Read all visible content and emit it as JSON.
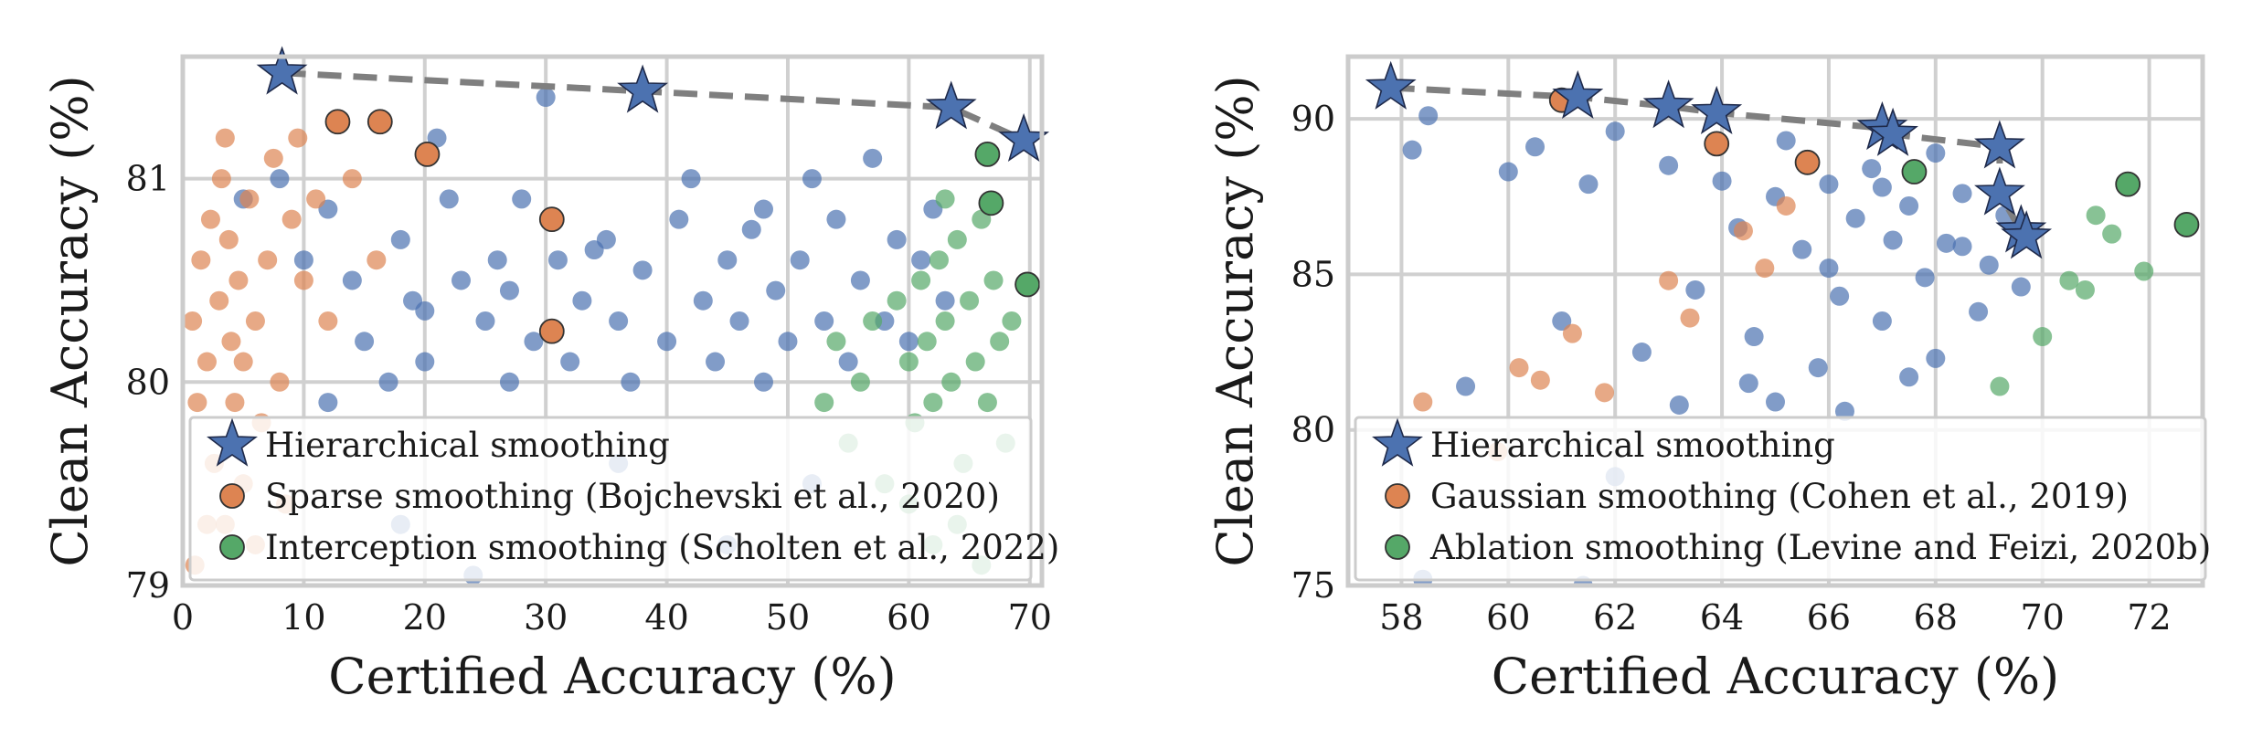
{
  "chart_data": [
    {
      "type": "scatter",
      "title": "",
      "xlabel": "Certified Accuracy (%)",
      "ylabel": "Clean Accuracy (%)",
      "xlim": [
        0,
        71
      ],
      "ylim": [
        79,
        81.6
      ],
      "xticks": [
        0,
        10,
        20,
        30,
        40,
        50,
        60,
        70
      ],
      "yticks": [
        79,
        80,
        81
      ],
      "grid": true,
      "legend_position": "bottom-left",
      "series": [
        {
          "name": "Hierarchical smoothing",
          "marker": "star",
          "color": "#4c72b0",
          "points": [
            [
              8.2,
              81.52
            ],
            [
              38.0,
              81.43
            ],
            [
              63.5,
              81.35
            ],
            [
              69.5,
              81.19
            ]
          ]
        },
        {
          "name": "Sparse smoothing (Bojchevski et al., 2020)",
          "marker": "circle-outlined",
          "color": "#dd8452",
          "points": [
            [
              12.8,
              81.28
            ],
            [
              16.3,
              81.28
            ],
            [
              20.2,
              81.12
            ],
            [
              30.5,
              80.8
            ],
            [
              30.5,
              80.25
            ]
          ]
        },
        {
          "name": "Interception smoothing (Scholten et al., 2022)",
          "marker": "circle-outlined",
          "color": "#55a868",
          "points": [
            [
              66.5,
              81.12
            ],
            [
              66.8,
              80.88
            ],
            [
              69.8,
              80.48
            ]
          ]
        },
        {
          "name": "",
          "role": "background cloud",
          "marker": "circle",
          "color": "#4c72b0",
          "points": [
            [
              5,
              80.9
            ],
            [
              8,
              81.0
            ],
            [
              10,
              80.6
            ],
            [
              12,
              80.85
            ],
            [
              14,
              80.5
            ],
            [
              15,
              80.2
            ],
            [
              17,
              80.0
            ],
            [
              18,
              80.7
            ],
            [
              19,
              80.4
            ],
            [
              20,
              80.1
            ],
            [
              21,
              81.2
            ],
            [
              22,
              80.9
            ],
            [
              23,
              80.5
            ],
            [
              25,
              80.3
            ],
            [
              26,
              80.6
            ],
            [
              27,
              80.0
            ],
            [
              28,
              80.9
            ],
            [
              29,
              80.2
            ],
            [
              30,
              81.4
            ],
            [
              31,
              80.6
            ],
            [
              32,
              80.1
            ],
            [
              33,
              80.4
            ],
            [
              35,
              80.7
            ],
            [
              36,
              80.3
            ],
            [
              37,
              80.0
            ],
            [
              38,
              80.55
            ],
            [
              40,
              80.2
            ],
            [
              41,
              80.8
            ],
            [
              42,
              81.0
            ],
            [
              43,
              80.4
            ],
            [
              44,
              80.1
            ],
            [
              45,
              80.6
            ],
            [
              46,
              80.3
            ],
            [
              47,
              80.75
            ],
            [
              48,
              80.0
            ],
            [
              49,
              80.45
            ],
            [
              50,
              80.2
            ],
            [
              51,
              80.6
            ],
            [
              52,
              81.0
            ],
            [
              53,
              80.3
            ],
            [
              54,
              80.8
            ],
            [
              55,
              80.1
            ],
            [
              56,
              80.5
            ],
            [
              57,
              81.1
            ],
            [
              58,
              80.3
            ],
            [
              59,
              80.7
            ],
            [
              60,
              80.2
            ],
            [
              61,
              80.6
            ],
            [
              62,
              80.85
            ],
            [
              63,
              80.4
            ],
            [
              12,
              79.9
            ],
            [
              18,
              79.3
            ],
            [
              24,
              79.05
            ],
            [
              36,
              79.6
            ],
            [
              45,
              79.2
            ],
            [
              52,
              79.5
            ],
            [
              20,
              80.35
            ],
            [
              27,
              80.45
            ],
            [
              34,
              80.65
            ],
            [
              48,
              80.85
            ]
          ]
        },
        {
          "name": "",
          "role": "background cloud",
          "marker": "circle",
          "color": "#dd8452",
          "points": [
            [
              0.8,
              80.3
            ],
            [
              1.2,
              79.9
            ],
            [
              1.5,
              80.6
            ],
            [
              2,
              80.1
            ],
            [
              2.3,
              80.8
            ],
            [
              2.6,
              79.6
            ],
            [
              3,
              80.4
            ],
            [
              3.2,
              81.0
            ],
            [
              3.5,
              79.3
            ],
            [
              3.8,
              80.7
            ],
            [
              4,
              80.2
            ],
            [
              4.3,
              79.9
            ],
            [
              4.6,
              80.5
            ],
            [
              5,
              79.5
            ],
            [
              5.5,
              80.9
            ],
            [
              6,
              80.3
            ],
            [
              6.5,
              79.8
            ],
            [
              7,
              80.6
            ],
            [
              7.5,
              81.1
            ],
            [
              8,
              80.0
            ],
            [
              8.5,
              79.4
            ],
            [
              9,
              80.8
            ],
            [
              9.5,
              81.2
            ],
            [
              10,
              80.5
            ],
            [
              11,
              80.9
            ],
            [
              12,
              80.3
            ],
            [
              14,
              81.0
            ],
            [
              16,
              80.6
            ],
            [
              1,
              79.1
            ],
            [
              2,
              79.3
            ],
            [
              3.5,
              81.2
            ],
            [
              5,
              80.1
            ],
            [
              6,
              79.2
            ]
          ]
        },
        {
          "name": "",
          "role": "background cloud",
          "marker": "circle",
          "color": "#55a868",
          "points": [
            [
              53,
              79.9
            ],
            [
              54,
              80.2
            ],
            [
              55,
              79.7
            ],
            [
              56,
              80.0
            ],
            [
              57,
              80.3
            ],
            [
              58,
              79.5
            ],
            [
              59,
              80.4
            ],
            [
              60,
              80.1
            ],
            [
              60.5,
              79.8
            ],
            [
              61,
              80.5
            ],
            [
              61.5,
              80.2
            ],
            [
              62,
              79.9
            ],
            [
              62.5,
              80.6
            ],
            [
              63,
              80.3
            ],
            [
              63.5,
              80.0
            ],
            [
              64,
              80.7
            ],
            [
              64.5,
              79.6
            ],
            [
              65,
              80.4
            ],
            [
              65.5,
              80.1
            ],
            [
              66,
              80.8
            ],
            [
              66.5,
              79.9
            ],
            [
              67,
              80.5
            ],
            [
              67.5,
              80.2
            ],
            [
              68,
              79.7
            ],
            [
              68.5,
              80.3
            ],
            [
              64,
              79.3
            ],
            [
              62,
              79.2
            ],
            [
              66,
              79.1
            ],
            [
              60,
              79.4
            ],
            [
              63,
              80.9
            ]
          ]
        }
      ]
    },
    {
      "type": "scatter",
      "title": "",
      "xlabel": "Certified Accuracy (%)",
      "ylabel": "Clean Accuracy (%)",
      "xlim": [
        57,
        73
      ],
      "ylim": [
        75,
        92
      ],
      "xticks": [
        58,
        60,
        62,
        64,
        66,
        68,
        70,
        72
      ],
      "yticks": [
        75,
        80,
        85,
        90
      ],
      "grid": true,
      "legend_position": "bottom-left",
      "series": [
        {
          "name": "Hierarchical smoothing",
          "marker": "star",
          "color": "#4c72b0",
          "points": [
            [
              57.8,
              91.0
            ],
            [
              61.3,
              90.7
            ],
            [
              63.0,
              90.4
            ],
            [
              63.9,
              90.2
            ],
            [
              67.0,
              89.7
            ],
            [
              67.2,
              89.5
            ],
            [
              69.2,
              89.1
            ],
            [
              69.2,
              87.6
            ],
            [
              69.6,
              86.4
            ],
            [
              69.7,
              86.2
            ]
          ]
        },
        {
          "name": "Gaussian smoothing (Cohen et al., 2019)",
          "marker": "circle-outlined",
          "color": "#dd8452",
          "points": [
            [
              61.0,
              90.6
            ],
            [
              63.9,
              89.2
            ],
            [
              65.6,
              88.6
            ]
          ]
        },
        {
          "name": "Ablation smoothing (Levine and Feizi, 2020b)",
          "marker": "circle-outlined",
          "color": "#55a868",
          "points": [
            [
              67.6,
              88.3
            ],
            [
              71.6,
              87.9
            ],
            [
              72.7,
              86.6
            ]
          ]
        },
        {
          "name": "",
          "role": "background cloud",
          "marker": "circle",
          "color": "#4c72b0",
          "points": [
            [
              58.2,
              89.0
            ],
            [
              58.5,
              90.1
            ],
            [
              60,
              88.3
            ],
            [
              60.5,
              89.1
            ],
            [
              61,
              83.5
            ],
            [
              61.5,
              87.9
            ],
            [
              62,
              89.6
            ],
            [
              62.5,
              82.5
            ],
            [
              63,
              88.5
            ],
            [
              63.2,
              80.8
            ],
            [
              63.5,
              84.5
            ],
            [
              64,
              88.0
            ],
            [
              64.3,
              86.5
            ],
            [
              64.6,
              83.0
            ],
            [
              65,
              87.5
            ],
            [
              65.2,
              89.3
            ],
            [
              65.5,
              85.8
            ],
            [
              65.8,
              82.0
            ],
            [
              66,
              87.9
            ],
            [
              66.2,
              84.3
            ],
            [
              66.5,
              86.8
            ],
            [
              66.8,
              88.4
            ],
            [
              67,
              83.5
            ],
            [
              67.2,
              86.1
            ],
            [
              67.5,
              87.2
            ],
            [
              67.8,
              84.9
            ],
            [
              68,
              88.9
            ],
            [
              68.2,
              86.0
            ],
            [
              68.5,
              87.6
            ],
            [
              68.8,
              83.8
            ],
            [
              69,
              85.3
            ],
            [
              69.3,
              86.9
            ],
            [
              69.6,
              84.6
            ],
            [
              66.3,
              80.6
            ],
            [
              65,
              80.9
            ],
            [
              62,
              78.5
            ],
            [
              61.4,
              75.0
            ],
            [
              58.4,
              75.2
            ],
            [
              59.2,
              81.4
            ],
            [
              67.5,
              81.7
            ],
            [
              68,
              82.3
            ],
            [
              64.5,
              81.5
            ],
            [
              66,
              85.2
            ],
            [
              67,
              87.8
            ],
            [
              68.5,
              85.9
            ]
          ]
        },
        {
          "name": "",
          "role": "background cloud",
          "marker": "circle",
          "color": "#dd8452",
          "points": [
            [
              58.4,
              80.9
            ],
            [
              60.2,
              82.0
            ],
            [
              60.6,
              81.6
            ],
            [
              61.2,
              83.1
            ],
            [
              61.8,
              81.2
            ],
            [
              63,
              84.8
            ],
            [
              63.4,
              83.6
            ],
            [
              64.4,
              86.4
            ],
            [
              64.8,
              85.2
            ],
            [
              65.2,
              87.2
            ],
            [
              59.8,
              79.3
            ]
          ]
        },
        {
          "name": "",
          "role": "background cloud",
          "marker": "circle",
          "color": "#55a868",
          "points": [
            [
              69.2,
              81.4
            ],
            [
              70.0,
              83.0
            ],
            [
              70.5,
              84.8
            ],
            [
              71.0,
              86.9
            ],
            [
              71.3,
              86.3
            ],
            [
              71.9,
              85.1
            ],
            [
              70.8,
              84.5
            ]
          ]
        }
      ]
    }
  ]
}
